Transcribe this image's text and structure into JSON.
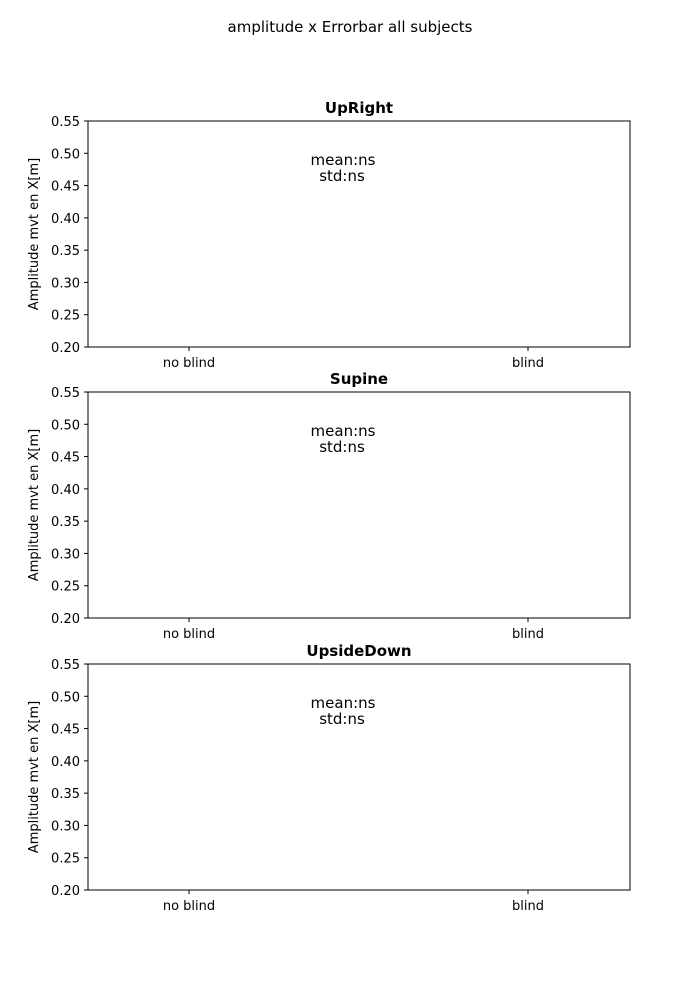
{
  "chart_data": {
    "suptitle": "amplitude x Errorbar all subjects",
    "panels": [
      {
        "type": "scatter",
        "title": "UpRight",
        "categories": [
          "no blind",
          "blind"
        ],
        "ylabel": "Amplitude mvt en X[m]",
        "ylim": [
          0.2,
          0.55
        ],
        "yticks": [
          0.2,
          0.25,
          0.3,
          0.35,
          0.4,
          0.45,
          0.5,
          0.55
        ],
        "annotation": [
          "mean:ns",
          "std:ns"
        ],
        "series": []
      },
      {
        "type": "scatter",
        "title": "Supine",
        "categories": [
          "no blind",
          "blind"
        ],
        "ylabel": "Amplitude mvt en X[m]",
        "ylim": [
          0.2,
          0.55
        ],
        "yticks": [
          0.2,
          0.25,
          0.3,
          0.35,
          0.4,
          0.45,
          0.5,
          0.55
        ],
        "annotation": [
          "mean:ns",
          "std:ns"
        ],
        "series": []
      },
      {
        "type": "scatter",
        "title": "UpsideDown",
        "categories": [
          "no blind",
          "blind"
        ],
        "ylabel": "Amplitude mvt en X[m]",
        "ylim": [
          0.2,
          0.55
        ],
        "yticks": [
          0.2,
          0.25,
          0.3,
          0.35,
          0.4,
          0.45,
          0.5,
          0.55
        ],
        "annotation": [
          "mean:ns",
          "std:ns"
        ],
        "series": []
      }
    ],
    "grid": false
  }
}
